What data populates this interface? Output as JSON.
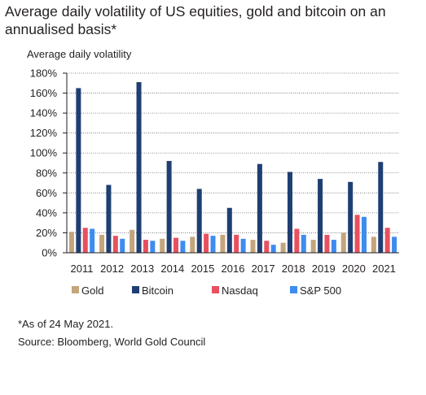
{
  "chart_data": {
    "type": "bar",
    "title": "Average daily volatility of US equities, gold and bitcoin on an annualised basis*",
    "ylabel": "Average daily volatility",
    "xlabel": "",
    "categories": [
      "2011",
      "2012",
      "2013",
      "2014",
      "2015",
      "2016",
      "2017",
      "2018",
      "2019",
      "2020",
      "2021"
    ],
    "ylim": [
      0,
      180
    ],
    "y_ticks": [
      "0%",
      "20%",
      "40%",
      "60%",
      "80%",
      "100%",
      "120%",
      "140%",
      "160%",
      "180%"
    ],
    "grid": "horizontal dotted",
    "legend_position": "bottom",
    "series": [
      {
        "name": "Gold",
        "color": "#c4a57c",
        "values": [
          21,
          18,
          23,
          14,
          16,
          18,
          13,
          10,
          13,
          20,
          16
        ]
      },
      {
        "name": "Bitcoin",
        "color": "#1f3f73",
        "values": [
          165,
          68,
          171,
          92,
          64,
          45,
          89,
          81,
          74,
          71,
          91
        ]
      },
      {
        "name": "Nasdaq",
        "color": "#e8505f",
        "values": [
          25,
          17,
          13,
          15,
          19,
          18,
          12,
          24,
          18,
          38,
          25
        ]
      },
      {
        "name": "S&P 500",
        "color": "#3d8cf0",
        "values": [
          24,
          14,
          12,
          12,
          17,
          14,
          8,
          18,
          13,
          36,
          16
        ]
      }
    ]
  },
  "footnote": "*As of 24 May 2021.",
  "source": "Source: Bloomberg, World Gold Council"
}
